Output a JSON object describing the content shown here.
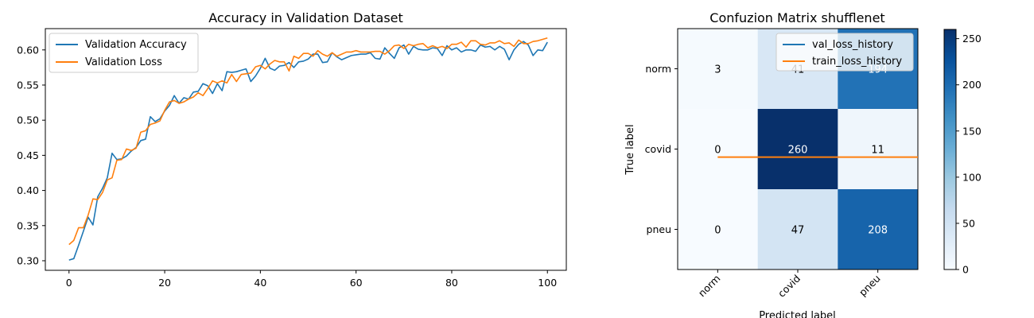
{
  "chart_data": [
    {
      "type": "line",
      "title": "Accuracy in Validation Dataset",
      "xlabel": "",
      "ylabel": "",
      "xlim": [
        -4.95,
        103.95
      ],
      "ylim": [
        0.2864,
        0.6303
      ],
      "xticks": [
        0,
        20,
        40,
        60,
        80,
        100
      ],
      "yticks": [
        0.3,
        0.35,
        0.4,
        0.45,
        0.5,
        0.55,
        0.6
      ],
      "legend_position": "top-left",
      "grid": false,
      "series": [
        {
          "name": "Validation Accuracy",
          "color": "#1f77b4",
          "values": [
            0.301,
            0.303,
            0.322,
            0.342,
            0.362,
            0.351,
            0.391,
            0.403,
            0.418,
            0.453,
            0.444,
            0.445,
            0.449,
            0.456,
            0.461,
            0.471,
            0.473,
            0.505,
            0.498,
            0.502,
            0.513,
            0.521,
            0.535,
            0.524,
            0.532,
            0.53,
            0.54,
            0.541,
            0.552,
            0.549,
            0.538,
            0.552,
            0.542,
            0.569,
            0.568,
            0.569,
            0.571,
            0.573,
            0.555,
            0.563,
            0.574,
            0.588,
            0.574,
            0.571,
            0.577,
            0.578,
            0.582,
            0.575,
            0.583,
            0.584,
            0.587,
            0.594,
            0.594,
            0.582,
            0.583,
            0.596,
            0.59,
            0.586,
            0.589,
            0.592,
            0.593,
            0.594,
            0.594,
            0.596,
            0.588,
            0.587,
            0.603,
            0.595,
            0.588,
            0.603,
            0.607,
            0.594,
            0.605,
            0.601,
            0.6,
            0.6,
            0.603,
            0.602,
            0.592,
            0.606,
            0.6,
            0.603,
            0.597,
            0.6,
            0.6,
            0.598,
            0.607,
            0.604,
            0.605,
            0.6,
            0.605,
            0.601,
            0.586,
            0.6,
            0.608,
            0.612,
            0.607,
            0.592,
            0.6,
            0.599,
            0.611
          ]
        },
        {
          "name": "Validation Loss",
          "color": "#ff7f0e",
          "values": [
            0.323,
            0.329,
            0.347,
            0.347,
            0.365,
            0.388,
            0.387,
            0.397,
            0.415,
            0.418,
            0.443,
            0.444,
            0.459,
            0.457,
            0.46,
            0.483,
            0.485,
            0.494,
            0.496,
            0.499,
            0.514,
            0.526,
            0.528,
            0.524,
            0.526,
            0.53,
            0.533,
            0.539,
            0.535,
            0.545,
            0.556,
            0.553,
            0.556,
            0.553,
            0.565,
            0.555,
            0.565,
            0.566,
            0.567,
            0.576,
            0.578,
            0.573,
            0.58,
            0.585,
            0.583,
            0.583,
            0.57,
            0.591,
            0.588,
            0.595,
            0.595,
            0.591,
            0.599,
            0.594,
            0.591,
            0.596,
            0.591,
            0.594,
            0.597,
            0.597,
            0.599,
            0.597,
            0.597,
            0.597,
            0.598,
            0.598,
            0.594,
            0.599,
            0.606,
            0.607,
            0.602,
            0.608,
            0.606,
            0.608,
            0.609,
            0.603,
            0.606,
            0.603,
            0.605,
            0.602,
            0.608,
            0.608,
            0.611,
            0.604,
            0.613,
            0.613,
            0.608,
            0.607,
            0.61,
            0.61,
            0.613,
            0.609,
            0.61,
            0.605,
            0.614,
            0.609,
            0.609,
            0.612,
            0.613,
            0.615,
            0.617
          ]
        }
      ]
    },
    {
      "type": "heatmap",
      "title": "Confuzion Matrix shufflenet",
      "xlabel": "Predicted label",
      "ylabel": "True label",
      "row_labels": [
        "norm",
        "covid",
        "pneu"
      ],
      "col_labels": [
        "norm",
        "covid",
        "pneu"
      ],
      "values": [
        [
          3,
          41,
          194
        ],
        [
          0,
          260,
          11
        ],
        [
          0,
          47,
          208
        ]
      ],
      "cell_labels": [
        [
          "3",
          "41",
          "194"
        ],
        [
          "0",
          "260",
          "11"
        ],
        [
          "0",
          "47",
          "208"
        ]
      ],
      "colormap": "Blues",
      "vmin": 0,
      "vmax": 260,
      "colorbar_ticks": [
        0,
        50,
        100,
        150,
        200,
        250
      ],
      "legend_position": "top-right",
      "overlay_legend": [
        {
          "name": "val_loss_history",
          "color": "#1f77b4"
        },
        {
          "name": "train_loss_history",
          "color": "#ff7f0e"
        }
      ],
      "overlay_series": [
        {
          "name": "train_loss_history",
          "color": "#ff7f0e",
          "y_at_row_fraction": 0.6,
          "x_start_col": 0,
          "x_end_col": 2
        }
      ]
    }
  ]
}
